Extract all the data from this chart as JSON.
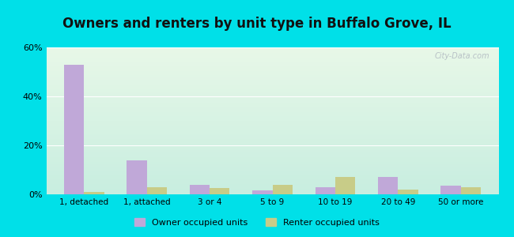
{
  "title": "Owners and renters by unit type in Buffalo Grove, IL",
  "categories": [
    "1, detached",
    "1, attached",
    "3 or 4",
    "5 to 9",
    "10 to 19",
    "20 to 49",
    "50 or more"
  ],
  "owner_values": [
    53,
    14,
    4,
    1.5,
    3,
    7,
    3.5
  ],
  "renter_values": [
    1,
    3,
    2.5,
    4,
    7,
    2,
    3
  ],
  "owner_color": "#c0a8d8",
  "renter_color": "#c8cc88",
  "background_outer": "#00e0e8",
  "ylim": [
    0,
    60
  ],
  "yticks": [
    0,
    20,
    40,
    60
  ],
  "ytick_labels": [
    "0%",
    "20%",
    "40%",
    "60%"
  ],
  "legend_owner": "Owner occupied units",
  "legend_renter": "Renter occupied units",
  "title_fontsize": 12,
  "bar_width": 0.32,
  "watermark": "City-Data.com",
  "grid_color": "#ffffff",
  "bg_color_topleft": "#d8f0d8",
  "bg_color_bottomright": "#c0eee0"
}
